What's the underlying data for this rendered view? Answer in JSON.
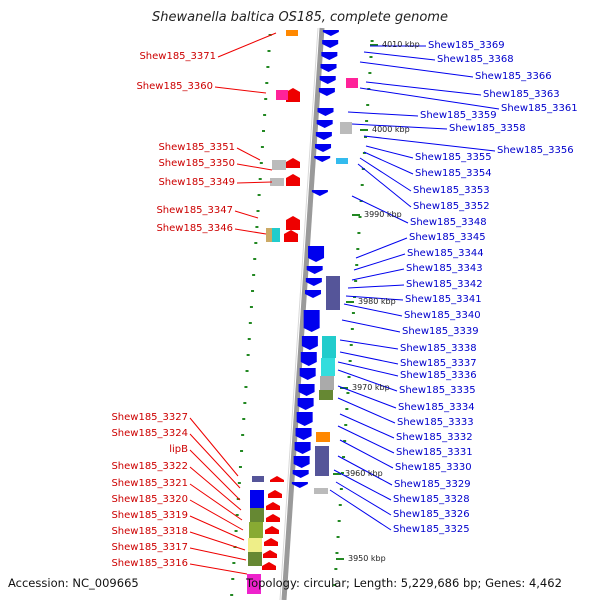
{
  "title": "Shewanella baltica OS185, complete genome",
  "accession": "Accession: NC_009665",
  "topology": "Topology: circular; Length: 5,229,686 bp; Genes: 4,462",
  "colors": {
    "forward_gene": "#ee0000",
    "reverse_gene": "#0000ee",
    "forward_label": "#cc0000",
    "reverse_label": "#0000cc",
    "backbone": "#9a9a9a",
    "tick": "#228822"
  },
  "scale_ticks": [
    "4010 kbp",
    "4000 kbp",
    "3990 kbp",
    "3980 kbp",
    "3970 kbp",
    "3960 kbp",
    "3950 kbp"
  ],
  "left_labels": [
    "Shew185_3371",
    "Shew185_3360",
    "Shew185_3351",
    "Shew185_3350",
    "Shew185_3349",
    "Shew185_3347",
    "Shew185_3346",
    "Shew185_3327",
    "Shew185_3324",
    "lipB",
    "Shew185_3322",
    "Shew185_3321",
    "Shew185_3320",
    "Shew185_3319",
    "Shew185_3318",
    "Shew185_3317",
    "Shew185_3316"
  ],
  "right_labels": [
    "Shew185_3369",
    "Shew185_3368",
    "Shew185_3366",
    "Shew185_3363",
    "Shew185_3361",
    "Shew185_3359",
    "Shew185_3358",
    "Shew185_3356",
    "Shew185_3355",
    "Shew185_3354",
    "Shew185_3353",
    "Shew185_3352",
    "Shew185_3348",
    "Shew185_3345",
    "Shew185_3344",
    "Shew185_3343",
    "Shew185_3342",
    "Shew185_3341",
    "Shew185_3340",
    "Shew185_3339",
    "Shew185_3338",
    "Shew185_3337",
    "Shew185_3336",
    "Shew185_3335",
    "Shew185_3334",
    "Shew185_3333",
    "Shew185_3332",
    "Shew185_3331",
    "Shew185_3330",
    "Shew185_3329",
    "Shew185_3328",
    "Shew185_3326",
    "Shew185_3325"
  ]
}
